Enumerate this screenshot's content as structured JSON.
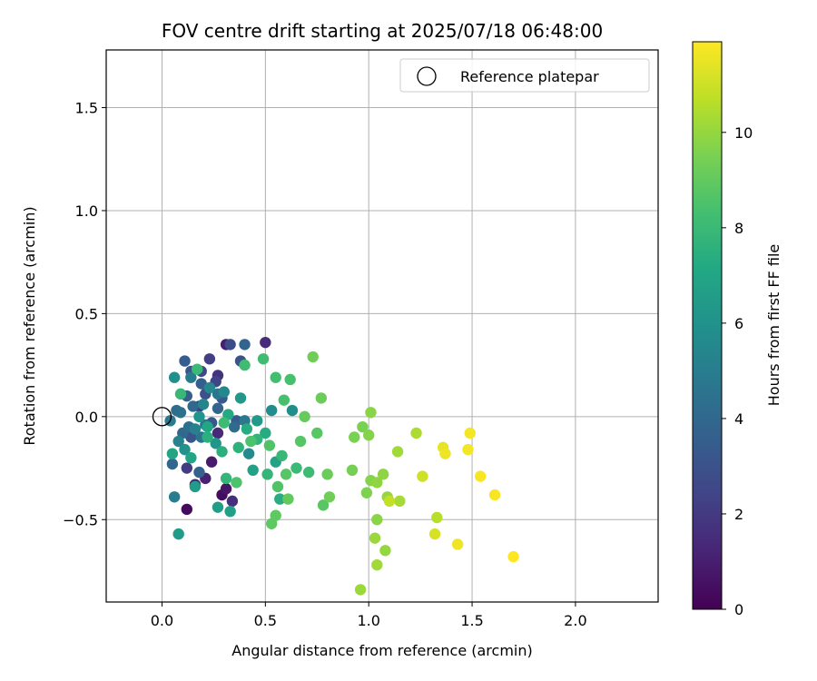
{
  "chart_data": {
    "type": "scatter",
    "title": "FOV centre drift starting at 2025/07/18 06:48:00",
    "xlabel": "Angular distance from reference (arcmin)",
    "ylabel": "Rotation from reference (arcmin)",
    "xlim": [
      -0.27,
      2.4
    ],
    "ylim": [
      -0.9,
      1.78
    ],
    "xticks": [
      "0.0",
      "0.5",
      "1.0",
      "1.5",
      "2.0"
    ],
    "xtick_values": [
      0,
      0.5,
      1.0,
      1.5,
      2.0
    ],
    "yticks": [
      "1.5",
      "1.0",
      "0.5",
      "0.0",
      "−0.5"
    ],
    "ytick_values": [
      1.5,
      1.0,
      0.5,
      0.0,
      -0.5
    ],
    "grid": true,
    "colormap": "viridis",
    "colorbar": {
      "label": "Hours from first FF file",
      "range": [
        0,
        11.9
      ],
      "ticks": [
        "0",
        "2",
        "4",
        "6",
        "8",
        "10"
      ],
      "tick_values": [
        0,
        2,
        4,
        6,
        8,
        10
      ]
    },
    "legend": {
      "placement": "top-right",
      "entries": [
        {
          "label": "Reference platepar",
          "marker": "open-circle",
          "color": "#000000"
        }
      ]
    },
    "reference_point": {
      "x": 0.0,
      "y": 0.0
    },
    "points": [
      [
        0.12,
        -0.45,
        0.3
      ],
      [
        0.29,
        -0.38,
        0.4
      ],
      [
        0.31,
        -0.35,
        0.7
      ],
      [
        0.24,
        -0.22,
        0.9
      ],
      [
        0.21,
        -0.3,
        1.1
      ],
      [
        0.16,
        -0.33,
        1.3
      ],
      [
        0.27,
        -0.08,
        1.4
      ],
      [
        0.34,
        -0.41,
        1.6
      ],
      [
        0.31,
        0.35,
        1.0
      ],
      [
        0.5,
        0.36,
        1.5
      ],
      [
        0.27,
        0.2,
        1.8
      ],
      [
        0.18,
        0.05,
        2.0
      ],
      [
        0.12,
        -0.25,
        2.1
      ],
      [
        0.23,
        0.28,
        2.2
      ],
      [
        0.26,
        0.17,
        2.4
      ],
      [
        0.19,
        0.22,
        2.6
      ],
      [
        0.33,
        0.35,
        2.7
      ],
      [
        0.38,
        0.27,
        3.0
      ],
      [
        0.21,
        0.11,
        2.9
      ],
      [
        0.14,
        0.22,
        3.2
      ],
      [
        0.14,
        -0.1,
        3.1
      ],
      [
        0.29,
        0.09,
        3.3
      ],
      [
        0.36,
        -0.02,
        3.4
      ],
      [
        0.24,
        -0.03,
        3.2
      ],
      [
        0.11,
        0.27,
        3.5
      ],
      [
        0.19,
        0.16,
        3.6
      ],
      [
        0.12,
        0.1,
        3.6
      ],
      [
        0.27,
        0.04,
        3.8
      ],
      [
        0.4,
        0.35,
        3.8
      ],
      [
        0.18,
        -0.27,
        3.7
      ],
      [
        0.05,
        -0.23,
        3.9
      ],
      [
        0.1,
        -0.08,
        4.0
      ],
      [
        0.15,
        0.05,
        4.0
      ],
      [
        0.35,
        -0.05,
        4.1
      ],
      [
        0.07,
        0.03,
        4.2
      ],
      [
        0.13,
        -0.05,
        4.3
      ],
      [
        0.09,
        0.02,
        4.4
      ],
      [
        0.19,
        -0.1,
        4.5
      ],
      [
        0.21,
        -0.04,
        4.6
      ],
      [
        0.27,
        0.11,
        4.6
      ],
      [
        0.4,
        -0.02,
        4.7
      ],
      [
        0.04,
        -0.02,
        4.8
      ],
      [
        0.14,
        0.19,
        4.9
      ],
      [
        0.06,
        -0.39,
        5.0
      ],
      [
        0.16,
        -0.06,
        5.2
      ],
      [
        0.08,
        -0.12,
        5.3
      ],
      [
        0.2,
        0.06,
        5.4
      ],
      [
        0.23,
        0.14,
        5.5
      ],
      [
        0.3,
        0.12,
        5.5
      ],
      [
        0.42,
        -0.18,
        5.6
      ],
      [
        0.53,
        0.03,
        5.7
      ],
      [
        0.63,
        0.03,
        5.8
      ],
      [
        0.06,
        0.19,
        5.9
      ],
      [
        0.11,
        -0.16,
        6.0
      ],
      [
        0.18,
        0.0,
        6.1
      ],
      [
        0.26,
        -0.13,
        6.2
      ],
      [
        0.38,
        0.09,
        6.3
      ],
      [
        0.46,
        -0.02,
        6.4
      ],
      [
        0.08,
        -0.57,
        6.5
      ],
      [
        0.16,
        -0.34,
        6.5
      ],
      [
        0.27,
        -0.44,
        6.6
      ],
      [
        0.33,
        -0.46,
        6.7
      ],
      [
        0.44,
        -0.26,
        6.8
      ],
      [
        0.55,
        -0.22,
        6.9
      ],
      [
        0.05,
        -0.18,
        7.0
      ],
      [
        0.14,
        -0.2,
        7.0
      ],
      [
        0.22,
        -0.05,
        7.1
      ],
      [
        0.32,
        0.01,
        7.2
      ],
      [
        0.41,
        -0.06,
        7.3
      ],
      [
        0.5,
        -0.08,
        7.3
      ],
      [
        0.57,
        -0.4,
        7.4
      ],
      [
        0.22,
        -0.1,
        7.5
      ],
      [
        0.29,
        -0.17,
        7.5
      ],
      [
        0.37,
        -0.15,
        7.6
      ],
      [
        0.46,
        -0.11,
        7.7
      ],
      [
        0.51,
        -0.28,
        7.8
      ],
      [
        0.58,
        -0.19,
        7.9
      ],
      [
        0.65,
        -0.25,
        8.0
      ],
      [
        0.71,
        -0.27,
        8.1
      ],
      [
        0.31,
        -0.3,
        7.8
      ],
      [
        0.09,
        0.11,
        7.9
      ],
      [
        0.17,
        0.23,
        8.0
      ],
      [
        0.3,
        -0.03,
        8.1
      ],
      [
        0.4,
        0.25,
        8.2
      ],
      [
        0.49,
        0.28,
        8.2
      ],
      [
        0.55,
        0.19,
        8.3
      ],
      [
        0.62,
        0.18,
        8.4
      ],
      [
        0.59,
        0.08,
        8.4
      ],
      [
        0.36,
        -0.32,
        8.5
      ],
      [
        0.43,
        -0.12,
        8.5
      ],
      [
        0.52,
        -0.14,
        8.6
      ],
      [
        0.56,
        -0.34,
        8.6
      ],
      [
        0.6,
        -0.28,
        8.7
      ],
      [
        0.67,
        -0.12,
        8.7
      ],
      [
        0.75,
        -0.08,
        8.8
      ],
      [
        0.78,
        -0.43,
        8.8
      ],
      [
        0.53,
        -0.52,
        8.9
      ],
      [
        0.55,
        -0.48,
        8.9
      ],
      [
        0.61,
        -0.4,
        9.0
      ],
      [
        0.69,
        0.0,
        9.1
      ],
      [
        0.77,
        0.09,
        9.2
      ],
      [
        0.8,
        -0.28,
        9.2
      ],
      [
        0.73,
        0.29,
        9.3
      ],
      [
        0.81,
        -0.39,
        9.3
      ],
      [
        0.92,
        -0.26,
        9.4
      ],
      [
        0.93,
        -0.1,
        9.5
      ],
      [
        0.97,
        -0.05,
        9.5
      ],
      [
        0.99,
        -0.37,
        9.6
      ],
      [
        1.01,
        -0.31,
        9.7
      ],
      [
        1.0,
        -0.09,
        9.7
      ],
      [
        1.01,
        0.02,
        9.8
      ],
      [
        1.04,
        -0.5,
        9.8
      ],
      [
        1.04,
        -0.32,
        9.9
      ],
      [
        1.07,
        -0.28,
        9.9
      ],
      [
        1.09,
        -0.39,
        10.0
      ],
      [
        1.08,
        -0.65,
        10.0
      ],
      [
        0.96,
        -0.84,
        10.1
      ],
      [
        1.03,
        -0.59,
        10.1
      ],
      [
        1.04,
        -0.72,
        10.2
      ],
      [
        1.14,
        -0.17,
        10.2
      ],
      [
        1.15,
        -0.41,
        10.3
      ],
      [
        1.23,
        -0.08,
        10.4
      ],
      [
        1.1,
        -0.41,
        10.8
      ],
      [
        1.26,
        -0.29,
        11.0
      ],
      [
        1.32,
        -0.57,
        11.2
      ],
      [
        1.33,
        -0.49,
        10.6
      ],
      [
        1.36,
        -0.15,
        11.5
      ],
      [
        1.37,
        -0.18,
        11.6
      ],
      [
        1.43,
        -0.62,
        11.6
      ],
      [
        1.48,
        -0.16,
        11.7
      ],
      [
        1.49,
        -0.08,
        11.7
      ],
      [
        1.54,
        -0.29,
        11.8
      ],
      [
        1.61,
        -0.38,
        11.8
      ],
      [
        1.7,
        -0.68,
        11.9
      ]
    ]
  }
}
